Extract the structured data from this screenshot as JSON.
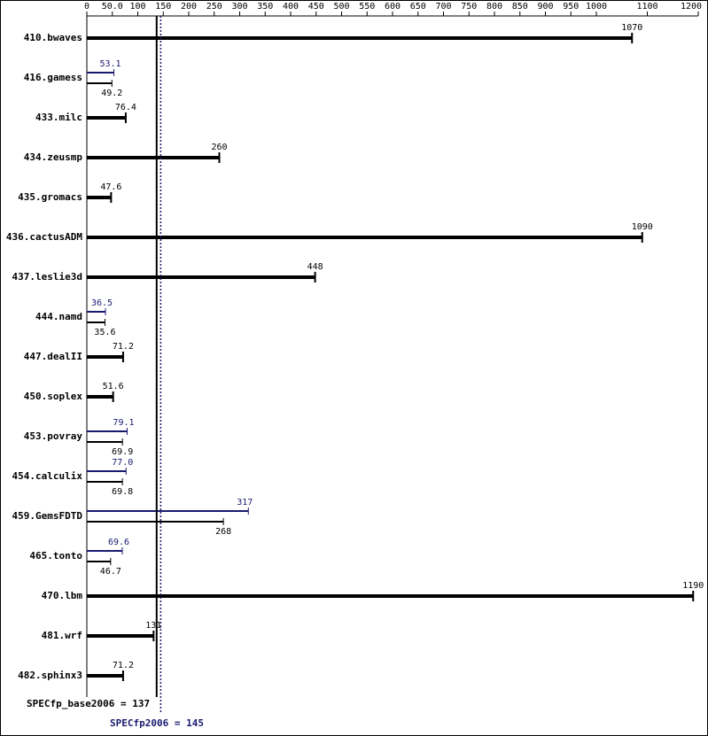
{
  "chart_data": {
    "type": "bar",
    "categories": [
      "410.bwaves",
      "416.gamess",
      "433.milc",
      "434.zeusmp",
      "435.gromacs",
      "436.cactusADM",
      "437.leslie3d",
      "444.namd",
      "447.dealII",
      "450.soplex",
      "453.povray",
      "454.calculix",
      "459.GemsFDTD",
      "465.tonto",
      "470.lbm",
      "481.wrf",
      "482.sphinx3"
    ],
    "series": [
      {
        "color": "#000000",
        "values": [
          1070,
          49.2,
          76.4,
          260,
          47.6,
          1090,
          448,
          35.6,
          71.2,
          51.6,
          69.9,
          69.8,
          268,
          46.7,
          1190,
          131,
          71.2
        ]
      },
      {
        "color": "#191970",
        "values": [
          null,
          53.1,
          null,
          null,
          null,
          null,
          null,
          36.5,
          null,
          null,
          79.1,
          77.0,
          317,
          69.6,
          null,
          null,
          null
        ],
        "value_labels": [
          null,
          "53.1",
          null,
          null,
          null,
          null,
          null,
          "36.5",
          null,
          null,
          "79.1",
          "77.0",
          "317",
          "69.6",
          null,
          null,
          null
        ]
      }
    ],
    "xlim": [
      0,
      1200
    ],
    "xticks": [
      0,
      {
        "value": 50,
        "label": "50.0"
      },
      100,
      150,
      200,
      250,
      300,
      350,
      400,
      450,
      500,
      550,
      600,
      650,
      700,
      750,
      800,
      850,
      900,
      950,
      1000,
      1100,
      1200
    ],
    "reference_lines": [
      {
        "label": "SPECfp_base2006 = 137",
        "value": 137,
        "color": "#000000"
      },
      {
        "label": "SPECfp2006 = 145",
        "value": 145,
        "color": "#191970"
      }
    ]
  }
}
